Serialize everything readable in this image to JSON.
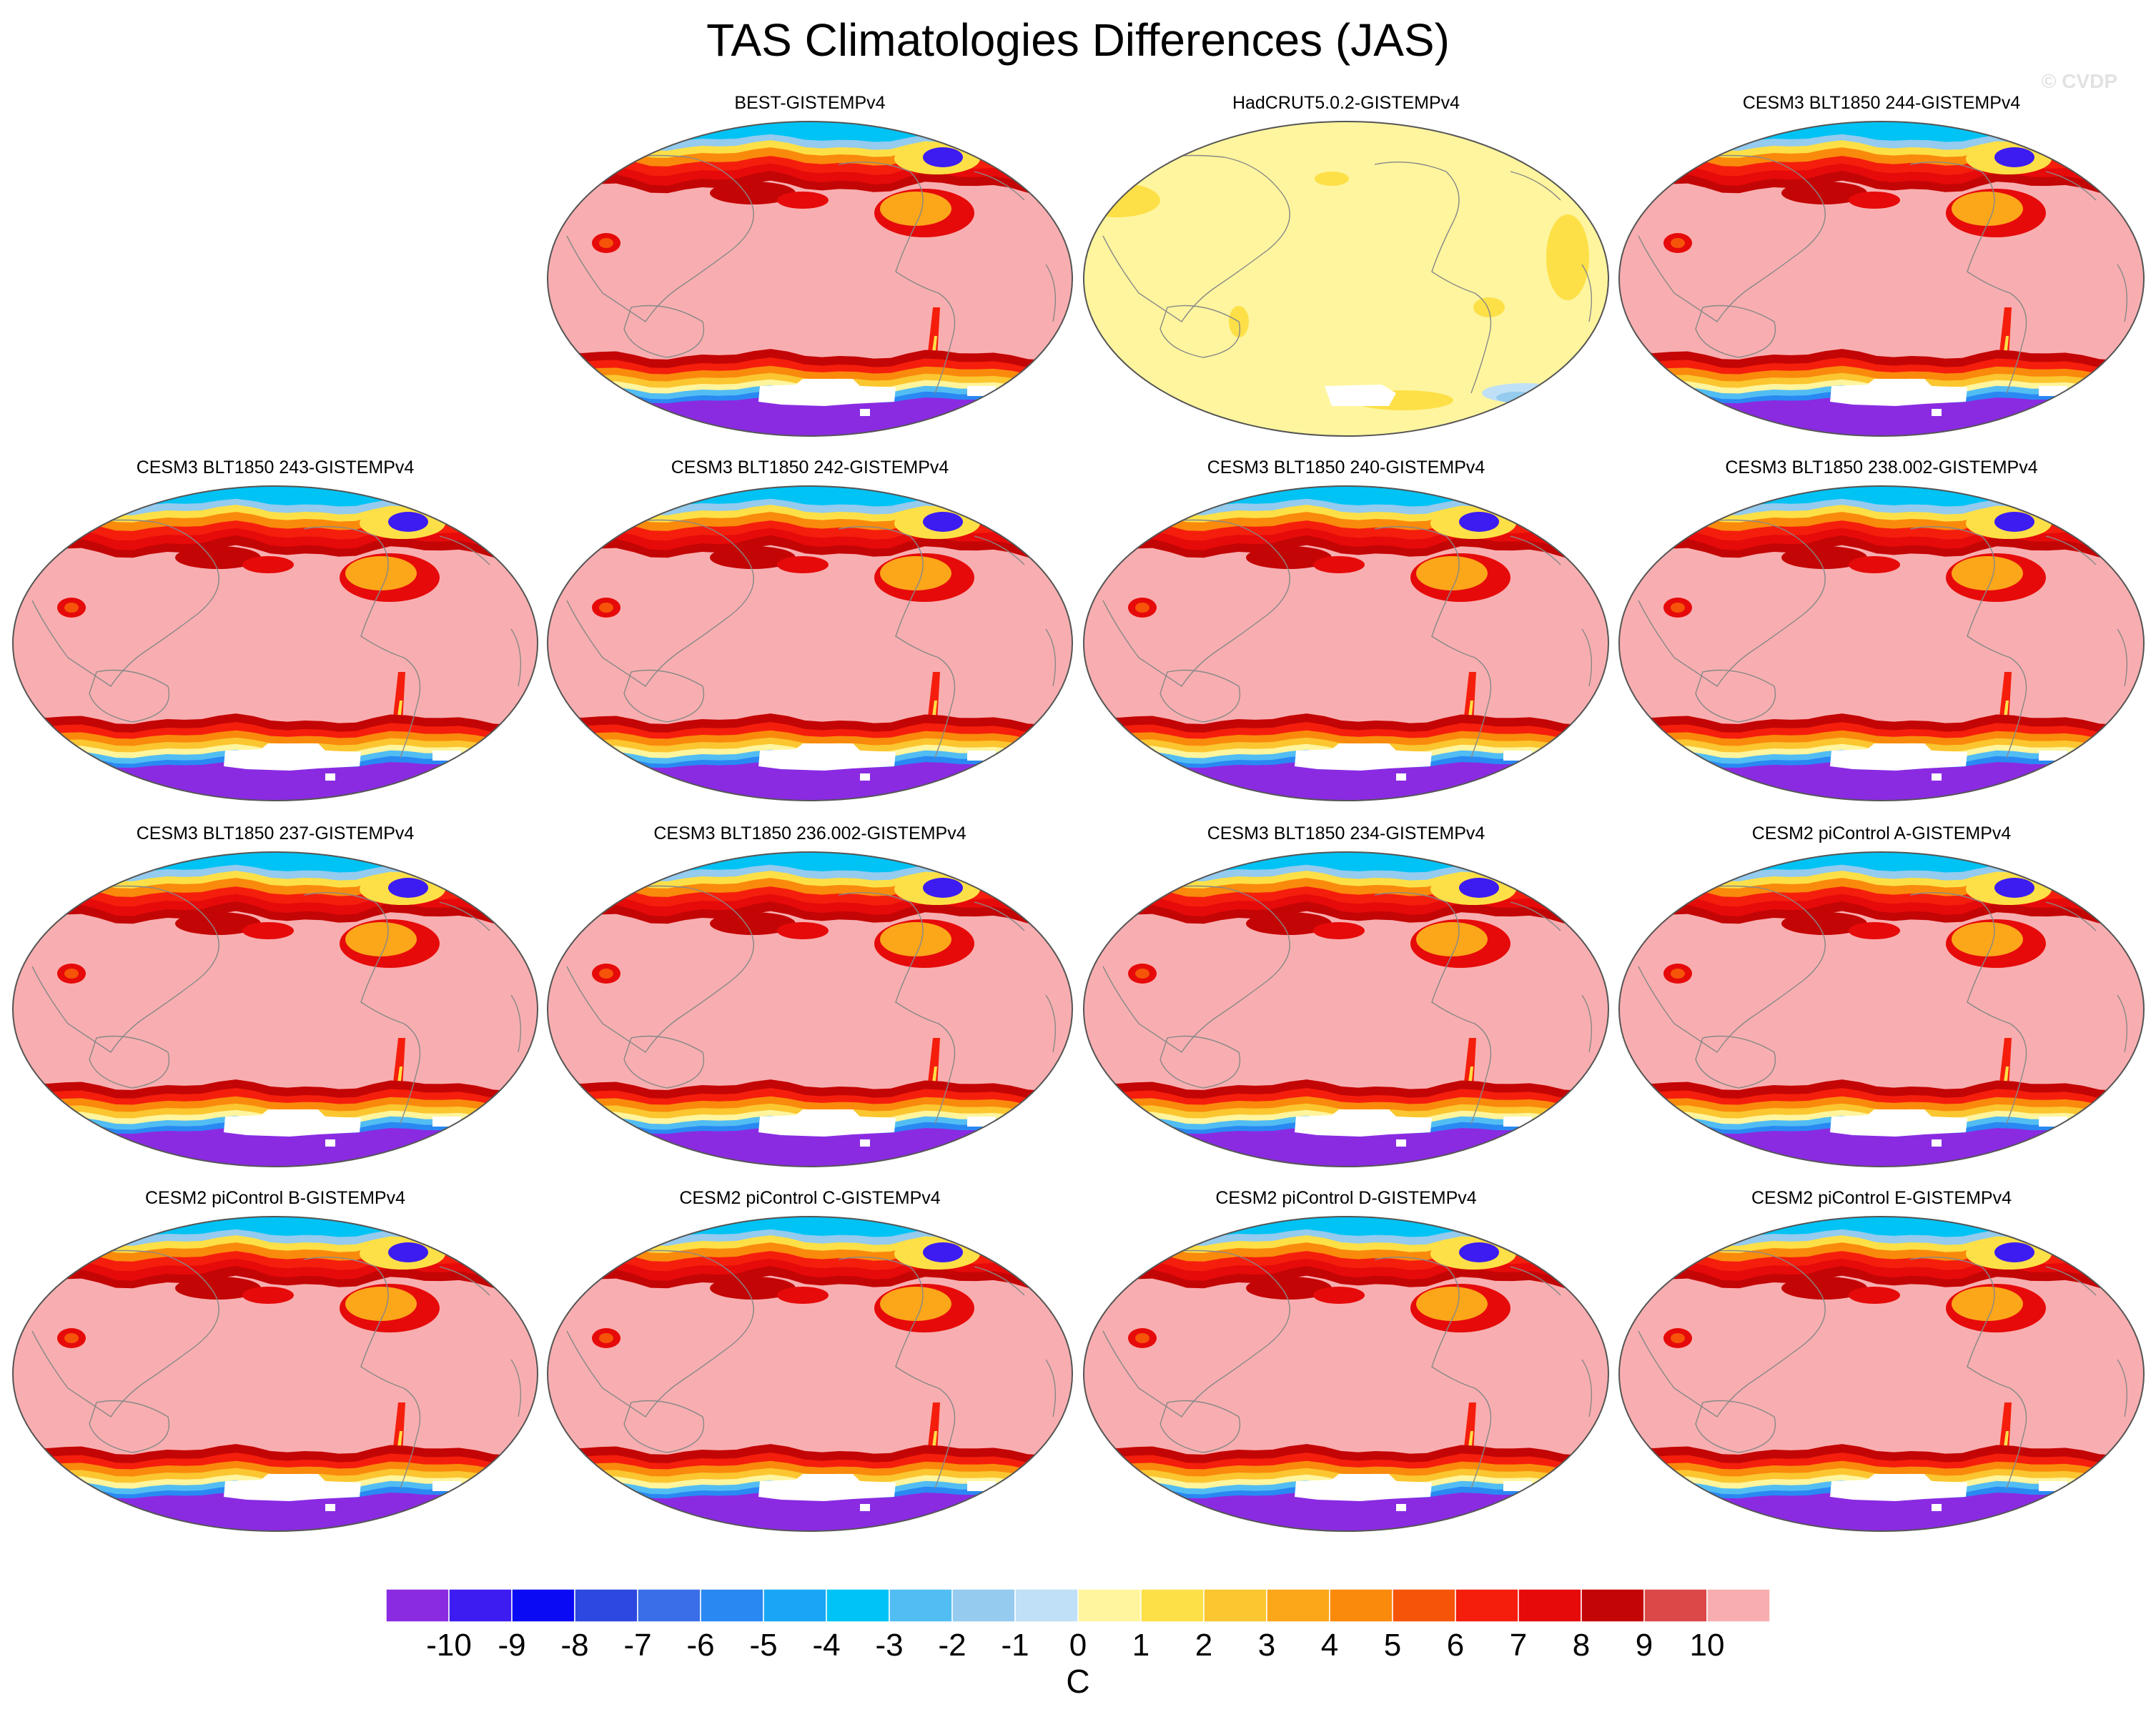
{
  "title": "TAS Climatologies Differences (JAS)",
  "watermark": "© CVDP",
  "chart_data": {
    "type": "heatmap",
    "projection": "Robinson, Pacific-centered",
    "grid": false,
    "layout": {
      "rows": 4,
      "cols": 4,
      "empty_cells": [
        [
          0,
          0
        ]
      ]
    },
    "panels": [
      {
        "title": "BEST-GISTEMPv4",
        "pattern": "model"
      },
      {
        "title": "HadCRUT5.0.2-GISTEMPv4",
        "pattern": "obs"
      },
      {
        "title": "CESM3 BLT1850 244-GISTEMPv4",
        "pattern": "model"
      },
      {
        "title": "CESM3 BLT1850 243-GISTEMPv4",
        "pattern": "model"
      },
      {
        "title": "CESM3 BLT1850 242-GISTEMPv4",
        "pattern": "model"
      },
      {
        "title": "CESM3 BLT1850 240-GISTEMPv4",
        "pattern": "model"
      },
      {
        "title": "CESM3 BLT1850 238.002-GISTEMPv4",
        "pattern": "model"
      },
      {
        "title": "CESM3 BLT1850 237-GISTEMPv4",
        "pattern": "model"
      },
      {
        "title": "CESM3 BLT1850 236.002-GISTEMPv4",
        "pattern": "model"
      },
      {
        "title": "CESM3 BLT1850 234-GISTEMPv4",
        "pattern": "model"
      },
      {
        "title": "CESM2 piControl A-GISTEMPv4",
        "pattern": "model"
      },
      {
        "title": "CESM2 piControl B-GISTEMPv4",
        "pattern": "model"
      },
      {
        "title": "CESM2 piControl C-GISTEMPv4",
        "pattern": "model"
      },
      {
        "title": "CESM2 piControl D-GISTEMPv4",
        "pattern": "model"
      },
      {
        "title": "CESM2 piControl E-GISTEMPv4",
        "pattern": "model"
      }
    ],
    "colorbar": {
      "units": "C",
      "tick_labels": [
        "-10",
        "-9",
        "-8",
        "-7",
        "-6",
        "-5",
        "-4",
        "-3",
        "-2",
        "-1",
        "0",
        "1",
        "2",
        "3",
        "4",
        "5",
        "6",
        "7",
        "8",
        "9",
        "10"
      ],
      "colors": [
        "#8a2be2",
        "#3c1cf0",
        "#0a0af5",
        "#2c48e0",
        "#3a6ee8",
        "#2a88f2",
        "#1aa6f6",
        "#00c3f5",
        "#52bdf3",
        "#94cbee",
        "#bfe0f6",
        "#fff59e",
        "#fde047",
        "#fbc630",
        "#fca61a",
        "#fa8a0c",
        "#f65408",
        "#f51e0c",
        "#e60a0a",
        "#c40505",
        "#dc4848",
        "#f8aeb0"
      ]
    }
  }
}
